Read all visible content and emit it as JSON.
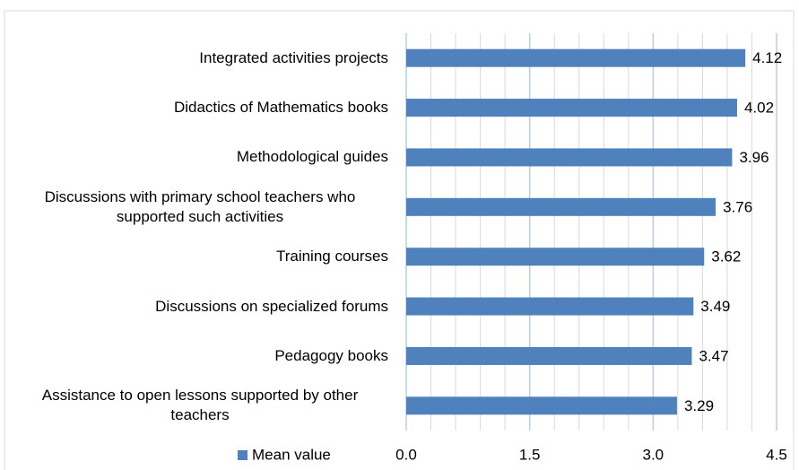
{
  "chart_data": {
    "type": "hbar",
    "categories": [
      "Integrated activities projects",
      "Didactics of Mathematics books",
      "Methodological guides",
      "Discussions with primary school teachers who supported such activities",
      "Training courses",
      "Discussions on specialized forums",
      "Pedagogy books",
      "Assistance to open lessons supported by other teachers"
    ],
    "series": [
      {
        "name": "Mean value",
        "color": "#4f81bd",
        "values": [
          4.12,
          4.02,
          3.96,
          3.76,
          3.62,
          3.49,
          3.47,
          3.29
        ]
      }
    ],
    "xlim": [
      0,
      4.5
    ],
    "xticks": [
      {
        "value": 0,
        "label": "0.0"
      },
      {
        "value": 1.5,
        "label": "1.5"
      },
      {
        "value": 3,
        "label": "3.0"
      },
      {
        "value": 4.5,
        "label": "4.5"
      }
    ],
    "xminorticks": [
      0.3,
      0.6,
      0.9,
      1.2,
      1.8,
      2.1,
      2.4,
      2.7,
      3.3,
      3.6,
      3.9,
      4.2
    ],
    "grid": true,
    "legend": "bottom"
  }
}
